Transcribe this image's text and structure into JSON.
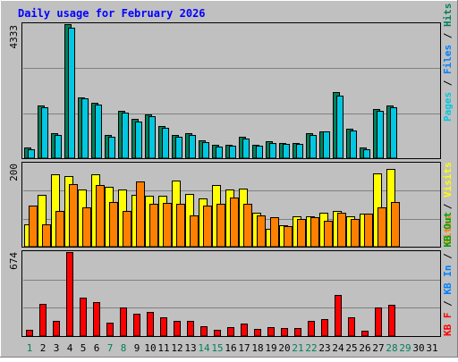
{
  "chart_data": {
    "type": "bar",
    "title": "Daily usage for February 2026",
    "days": [
      "1",
      "2",
      "3",
      "4",
      "5",
      "6",
      "7",
      "8",
      "9",
      "10",
      "11",
      "12",
      "13",
      "14",
      "15",
      "16",
      "17",
      "18",
      "19",
      "20",
      "21",
      "22",
      "23",
      "24",
      "25",
      "26",
      "27",
      "28",
      "29",
      "30",
      "31"
    ],
    "weekend_days": [
      1,
      7,
      8,
      14,
      15,
      21,
      22,
      28,
      29
    ],
    "panels": [
      {
        "key": "hits",
        "ymax_label": "4333",
        "ymax": 4333,
        "ylabel_parts": [
          "Pages",
          " / ",
          "Files",
          " / ",
          "Hits"
        ],
        "series": [
          {
            "name": "Hits",
            "color": "#00805c",
            "values": [
              380,
              1730,
              820,
              4333,
              1980,
              1820,
              780,
              1550,
              1290,
              1430,
              1050,
              770,
              820,
              590,
              450,
              470,
              730,
              470,
              570,
              520,
              520,
              820,
              900,
              2140,
              980,
              360,
              1600,
              1720,
              0,
              0,
              0
            ]
          },
          {
            "name": "Files",
            "color": "#00c8e0",
            "values": [
              320,
              1660,
              780,
              4230,
              1950,
              1760,
              720,
              1500,
              1200,
              1370,
              1010,
              730,
              780,
              550,
              410,
              430,
              660,
              440,
              530,
              480,
              480,
              780,
              880,
              2050,
              920,
              320,
              1550,
              1660,
              0,
              0,
              0
            ]
          }
        ]
      },
      {
        "key": "visits",
        "ymax_label": "200",
        "ymax": 200,
        "ylabel_parts": [
          "Sites",
          " / ",
          "Visits"
        ],
        "series": [
          {
            "name": "Visits",
            "color": "#ffff00",
            "values": [
              55,
              125,
              174,
              170,
              138,
              175,
              144,
              138,
              126,
              124,
              123,
              160,
              128,
              118,
              149,
              139,
              141,
              84,
              44,
              53,
              74,
              74,
              82,
              88,
              75,
              81,
              177,
              187,
              0,
              0,
              0
            ]
          },
          {
            "name": "Sites",
            "color": "#ff8000",
            "values": [
              100,
              56,
              87,
              150,
              96,
              149,
              108,
              87,
              158,
              104,
              107,
              105,
              77,
              100,
              104,
              120,
              104,
              76,
              72,
              50,
              69,
              72,
              63,
              84,
              68,
              81,
              96,
              109,
              0,
              0,
              0
            ]
          }
        ]
      },
      {
        "key": "kbytes",
        "ymax_label": "674",
        "ymax": 674,
        "ylabel_parts": [
          "KB F",
          " / ",
          "KB In",
          " / ",
          "KB Out"
        ],
        "series": [
          {
            "name": "KB F",
            "color": "#ff0000",
            "values": [
              54,
              262,
              128,
              674,
              309,
              275,
              110,
              233,
              186,
              200,
              158,
              127,
              127,
              83,
              60,
              76,
              105,
              64,
              76,
              71,
              69,
              128,
              142,
              330,
              158,
              50,
              233,
              252,
              0,
              0,
              0
            ]
          }
        ]
      }
    ]
  }
}
